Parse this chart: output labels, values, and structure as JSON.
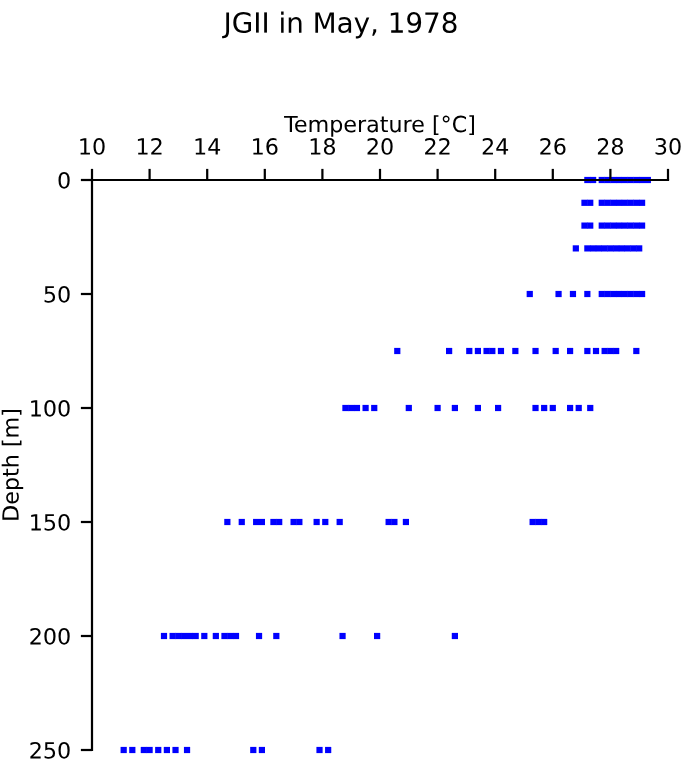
{
  "chart_data": {
    "type": "scatter",
    "title": "JGII in May, 1978",
    "xlabel": "Temperature [°C]",
    "ylabel": "Depth [m]",
    "xlim": [
      10,
      30
    ],
    "xticks": [
      10,
      12,
      14,
      16,
      18,
      20,
      22,
      24,
      26,
      28,
      30
    ],
    "ylim": [
      250,
      0
    ],
    "yticks": [
      0,
      50,
      100,
      150,
      200,
      250
    ],
    "marker": "square",
    "grid": false,
    "legend": false,
    "series": [
      {
        "color": "#0000ff",
        "x": [
          27.2,
          27.4,
          27.7,
          27.9,
          28.1,
          28.3,
          28.5,
          28.7,
          28.9,
          29.1,
          29.3
        ],
        "values": [
          0,
          0,
          0,
          0,
          0,
          0,
          0,
          0,
          0,
          0,
          0
        ]
      },
      {
        "color": "#0000ff",
        "x": [
          27.1,
          27.3,
          27.7,
          27.9,
          28.1,
          28.3,
          28.5,
          28.7,
          28.9,
          29.1
        ],
        "values": [
          10,
          10,
          10,
          10,
          10,
          10,
          10,
          10,
          10,
          10
        ]
      },
      {
        "color": "#0000ff",
        "x": [
          27.1,
          27.3,
          27.7,
          27.9,
          28.1,
          28.3,
          28.5,
          28.7,
          28.9,
          29.1
        ],
        "values": [
          20,
          20,
          20,
          20,
          20,
          20,
          20,
          20,
          20,
          20
        ]
      },
      {
        "color": "#0000ff",
        "x": [
          26.8,
          27.2,
          27.4,
          27.6,
          27.8,
          28.0,
          28.2,
          28.4,
          28.6,
          28.8,
          29.0
        ],
        "values": [
          30,
          30,
          30,
          30,
          30,
          30,
          30,
          30,
          30,
          30,
          30
        ]
      },
      {
        "color": "#0000ff",
        "x": [
          25.2,
          26.2,
          26.7,
          27.2,
          27.7,
          27.9,
          28.1,
          28.3,
          28.5,
          28.7,
          28.9,
          29.1
        ],
        "values": [
          50,
          50,
          50,
          50,
          50,
          50,
          50,
          50,
          50,
          50,
          50,
          50
        ]
      },
      {
        "color": "#0000ff",
        "x": [
          20.6,
          22.4,
          23.1,
          23.4,
          23.7,
          23.9,
          24.2,
          24.7,
          25.4,
          26.1,
          26.6,
          27.2,
          27.5,
          27.8,
          28.0,
          28.2,
          28.9
        ],
        "values": [
          75,
          75,
          75,
          75,
          75,
          75,
          75,
          75,
          75,
          75,
          75,
          75,
          75,
          75,
          75,
          75,
          75
        ]
      },
      {
        "color": "#0000ff",
        "x": [
          18.8,
          19.0,
          19.2,
          19.5,
          19.8,
          21.0,
          22.0,
          22.6,
          23.4,
          24.1,
          25.4,
          25.7,
          26.0,
          26.6,
          26.9,
          27.3
        ],
        "values": [
          100,
          100,
          100,
          100,
          100,
          100,
          100,
          100,
          100,
          100,
          100,
          100,
          100,
          100,
          100,
          100
        ]
      },
      {
        "color": "#0000ff",
        "x": [
          14.7,
          15.2,
          15.7,
          15.9,
          16.3,
          16.5,
          17.0,
          17.2,
          17.8,
          18.1,
          18.6,
          20.3,
          20.5,
          20.9,
          25.3,
          25.5,
          25.7
        ],
        "values": [
          150,
          150,
          150,
          150,
          150,
          150,
          150,
          150,
          150,
          150,
          150,
          150,
          150,
          150,
          150,
          150,
          150
        ]
      },
      {
        "color": "#0000ff",
        "x": [
          12.5,
          12.8,
          13.0,
          13.2,
          13.4,
          13.6,
          13.9,
          14.3,
          14.6,
          14.8,
          15.0,
          15.8,
          16.4,
          18.7,
          19.9,
          22.6
        ],
        "values": [
          200,
          200,
          200,
          200,
          200,
          200,
          200,
          200,
          200,
          200,
          200,
          200,
          200,
          200,
          200,
          200
        ]
      },
      {
        "color": "#0000ff",
        "x": [
          11.1,
          11.4,
          11.8,
          12.0,
          12.3,
          12.6,
          12.9,
          13.3,
          15.6,
          15.9,
          17.9,
          18.2
        ],
        "values": [
          250,
          250,
          250,
          250,
          250,
          250,
          250,
          250,
          250,
          250,
          250,
          250
        ]
      }
    ]
  }
}
